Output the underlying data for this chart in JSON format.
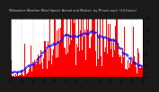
{
  "title": "Milwaukee Weather Wind Speed  Actual and Median  by Minute mph  (24 Hours)",
  "title_bg_color": "#1a1a1a",
  "title_text_color": "#cccccc",
  "background_color": "#1a1a1a",
  "plot_bg_color": "#ffffff",
  "bar_color": "#ff0000",
  "line_color": "#0000ff",
  "ylim": [
    0,
    20
  ],
  "xlim": [
    0,
    1440
  ],
  "yticks": [
    0,
    4,
    8,
    12,
    16,
    20
  ],
  "title_fontsize": 3.0,
  "num_minutes": 1440,
  "seed": 42
}
